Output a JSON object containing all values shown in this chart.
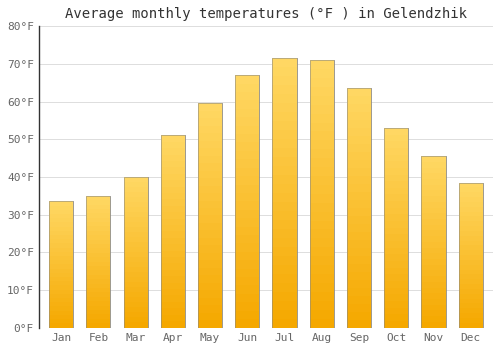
{
  "title": "Average monthly temperatures (°F ) in Gelendzhik",
  "months": [
    "Jan",
    "Feb",
    "Mar",
    "Apr",
    "May",
    "Jun",
    "Jul",
    "Aug",
    "Sep",
    "Oct",
    "Nov",
    "Dec"
  ],
  "values": [
    33.5,
    35.0,
    40.0,
    51.0,
    59.5,
    67.0,
    71.5,
    71.0,
    63.5,
    53.0,
    45.5,
    38.5
  ],
  "bar_color_bottom": "#F5A800",
  "bar_color_top": "#FFD966",
  "bar_edge_color": "#888888",
  "ylim": [
    0,
    80
  ],
  "yticks": [
    0,
    10,
    20,
    30,
    40,
    50,
    60,
    70,
    80
  ],
  "ytick_labels": [
    "0°F",
    "10°F",
    "20°F",
    "30°F",
    "40°F",
    "50°F",
    "60°F",
    "70°F",
    "80°F"
  ],
  "background_color": "#FFFFFF",
  "grid_color": "#DDDDDD",
  "title_fontsize": 10,
  "tick_fontsize": 8,
  "font_family": "monospace"
}
